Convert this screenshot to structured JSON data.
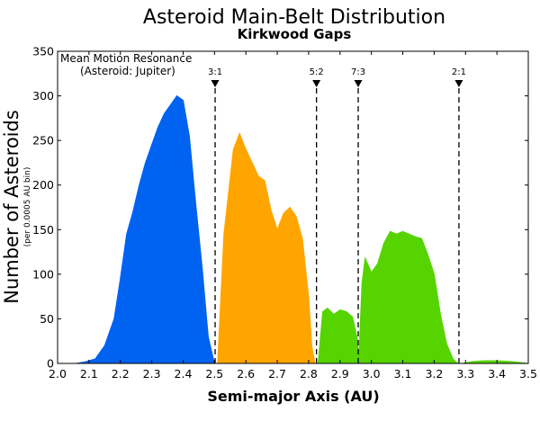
{
  "chart_data": {
    "type": "area",
    "title": "Asteroid Main-Belt Distribution",
    "subtitle": "Kirkwood Gaps",
    "xlabel": "Semi-major Axis (AU)",
    "ylabel": "Number of Asteroids",
    "ylabel_sub": "(per 0.0005 AU bin)",
    "xlim": [
      2.0,
      3.5
    ],
    "ylim": [
      0,
      350
    ],
    "x_ticks": [
      "2.0",
      "2.1",
      "2.2",
      "2.3",
      "2.4",
      "2.5",
      "2.6",
      "2.7",
      "2.8",
      "2.9",
      "3.0",
      "3.1",
      "3.2",
      "3.3",
      "3.4",
      "3.5"
    ],
    "y_ticks": [
      "0",
      "50",
      "100",
      "150",
      "200",
      "250",
      "300",
      "350"
    ],
    "grid": false,
    "annotation": {
      "line1": "Mean Motion Resonance",
      "line2": "(Asteroid: Jupiter)"
    },
    "resonances": [
      {
        "label": "3:1",
        "x": 2.502
      },
      {
        "label": "5:2",
        "x": 2.825
      },
      {
        "label": "7:3",
        "x": 2.958
      },
      {
        "label": "2:1",
        "x": 3.279
      }
    ],
    "series": [
      {
        "color": "#0062f0",
        "x": [
          2.06,
          2.09,
          2.12,
          2.15,
          2.18,
          2.2,
          2.22,
          2.24,
          2.26,
          2.28,
          2.3,
          2.32,
          2.34,
          2.36,
          2.38,
          2.4,
          2.42,
          2.44,
          2.46,
          2.48,
          2.5
        ],
        "y": [
          0,
          2,
          5,
          20,
          50,
          95,
          145,
          170,
          200,
          225,
          245,
          265,
          280,
          290,
          300,
          295,
          255,
          180,
          110,
          30,
          0
        ]
      },
      {
        "color": "#ffa500",
        "x": [
          2.51,
          2.53,
          2.56,
          2.58,
          2.6,
          2.62,
          2.64,
          2.66,
          2.68,
          2.7,
          2.72,
          2.74,
          2.76,
          2.78,
          2.8,
          2.81,
          2.82
        ],
        "y": [
          0,
          145,
          240,
          258,
          240,
          225,
          210,
          205,
          172,
          150,
          168,
          175,
          165,
          140,
          75,
          20,
          0
        ]
      },
      {
        "color": "#55d400",
        "x": [
          2.83,
          2.845,
          2.86,
          2.88,
          2.9,
          2.92,
          2.94,
          2.955,
          2.96,
          2.97,
          2.98,
          3.0,
          3.02,
          3.04,
          3.06,
          3.08,
          3.1,
          3.12,
          3.14,
          3.16,
          3.18,
          3.2,
          3.22,
          3.24,
          3.26,
          3.275,
          3.29,
          3.32,
          3.36,
          3.4,
          3.45,
          3.5
        ],
        "y": [
          0,
          58,
          62,
          55,
          60,
          58,
          52,
          28,
          5,
          90,
          118,
          102,
          112,
          135,
          148,
          145,
          148,
          145,
          142,
          140,
          122,
          100,
          55,
          22,
          5,
          0,
          0,
          2,
          3,
          3,
          2,
          0
        ]
      }
    ]
  }
}
